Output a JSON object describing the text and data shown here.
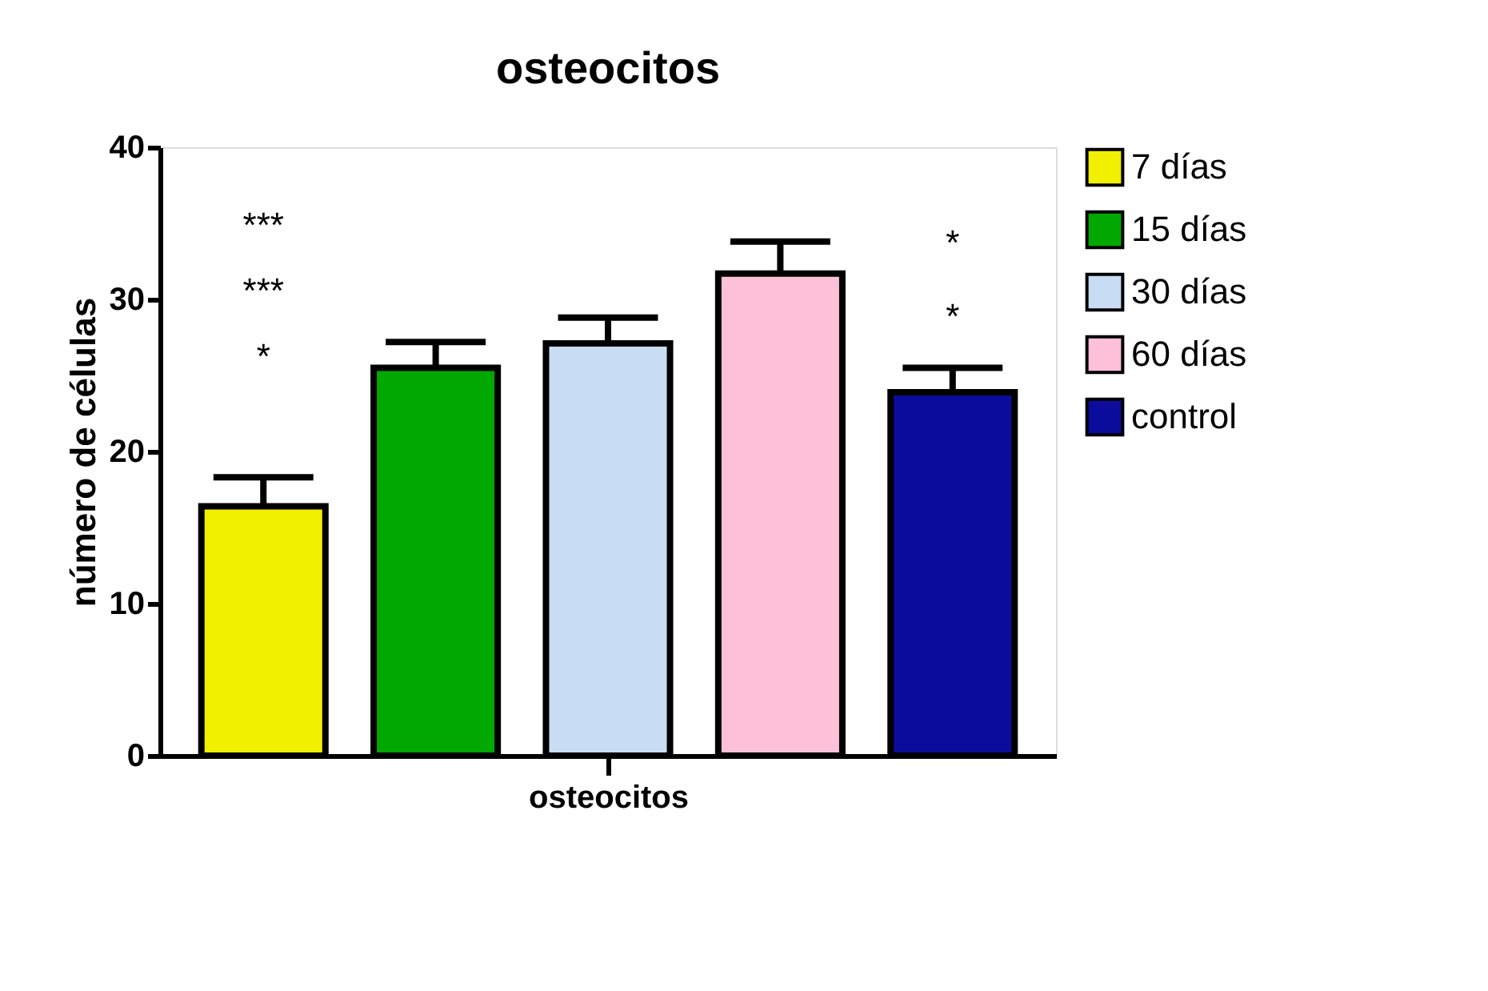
{
  "chart_data": {
    "type": "bar",
    "title": "osteocitos",
    "ylabel": "número de células",
    "categories": [
      "osteocitos"
    ],
    "series": [
      {
        "name": "7 días",
        "color": "#f0f000",
        "values": [
          16.4
        ],
        "errors": [
          [
            16.4,
            18.3
          ]
        ]
      },
      {
        "name": "15 días",
        "color": "#00a800",
        "values": [
          25.5
        ],
        "errors": [
          [
            25.5,
            27.2
          ]
        ]
      },
      {
        "name": "30 días",
        "color": "#c8dcf4",
        "values": [
          27.1
        ],
        "errors": [
          [
            27.1,
            28.8
          ]
        ]
      },
      {
        "name": "60 días",
        "color": "#fcc0d8",
        "values": [
          31.7
        ],
        "errors": [
          [
            31.7,
            33.8
          ]
        ]
      },
      {
        "name": "control",
        "color": "#0c0c9c",
        "values": [
          23.9
        ],
        "errors": [
          [
            23.9,
            25.5
          ]
        ]
      }
    ],
    "annotations": [
      "***",
      "***",
      "*",
      "*",
      "*"
    ],
    "ylim": [
      0,
      40
    ],
    "yticks": [
      0,
      10,
      20,
      30,
      40
    ],
    "grid": false,
    "legend": "top right"
  }
}
